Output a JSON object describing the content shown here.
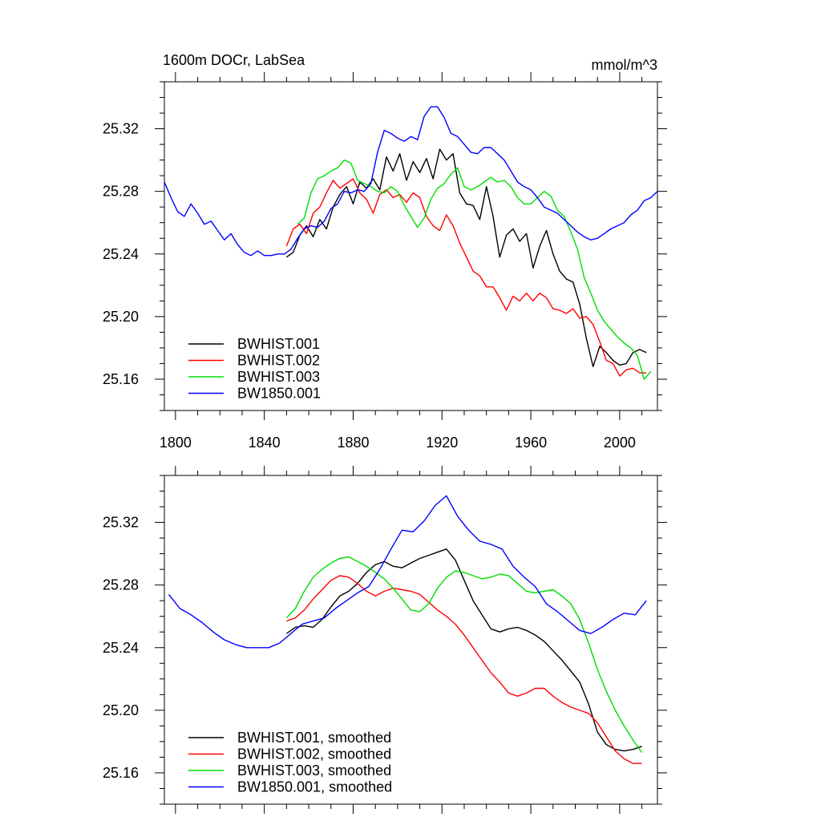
{
  "chart_data": [
    {
      "type": "line",
      "title_left": "1600m DOCr, LabSea",
      "title_right": "mmol/m^3",
      "xlim": [
        1795,
        2017
      ],
      "ylim": [
        25.14,
        25.35
      ],
      "xticks": [
        1800,
        1840,
        1880,
        1920,
        1960,
        2000
      ],
      "xtick_labels": [
        "1800",
        "1840",
        "1880",
        "1920",
        "1960",
        "2000"
      ],
      "yticks": [
        25.16,
        25.2,
        25.24,
        25.28,
        25.32
      ],
      "ytick_labels": [
        "25.16",
        "25.20",
        "25.24",
        "25.28",
        "25.32"
      ],
      "legend_position": "bottom-left",
      "series": [
        {
          "name": "BWHIST.001",
          "color": "#000000",
          "x": [
            1850,
            1853,
            1856,
            1859,
            1862,
            1865,
            1868,
            1871,
            1874,
            1877,
            1880,
            1883,
            1886,
            1889,
            1892,
            1895,
            1898,
            1901,
            1904,
            1907,
            1910,
            1913,
            1916,
            1919,
            1922,
            1925,
            1928,
            1931,
            1934,
            1937,
            1940,
            1943,
            1946,
            1949,
            1952,
            1955,
            1958,
            1961,
            1964,
            1967,
            1970,
            1973,
            1976,
            1979,
            1982,
            1985,
            1988,
            1991,
            1994,
            1997,
            2000,
            2003,
            2006,
            2009,
            2012
          ],
          "y": [
            25.238,
            25.241,
            25.252,
            25.258,
            25.251,
            25.262,
            25.256,
            25.27,
            25.278,
            25.283,
            25.272,
            25.286,
            25.282,
            25.288,
            25.281,
            25.302,
            25.293,
            25.304,
            25.287,
            25.299,
            25.292,
            25.301,
            25.288,
            25.307,
            25.3,
            25.304,
            25.279,
            25.272,
            25.271,
            25.262,
            25.283,
            25.264,
            25.238,
            25.252,
            25.256,
            25.248,
            25.253,
            25.231,
            25.245,
            25.255,
            25.24,
            25.229,
            25.224,
            25.222,
            25.208,
            25.186,
            25.168,
            25.181,
            25.177,
            25.172,
            25.169,
            25.17,
            25.177,
            25.179,
            25.177
          ]
        },
        {
          "name": "BWHIST.002",
          "color": "#ff0000",
          "x": [
            1850,
            1853,
            1856,
            1859,
            1862,
            1865,
            1868,
            1871,
            1874,
            1877,
            1880,
            1883,
            1886,
            1889,
            1892,
            1895,
            1898,
            1901,
            1904,
            1907,
            1910,
            1913,
            1916,
            1919,
            1922,
            1925,
            1928,
            1931,
            1934,
            1937,
            1940,
            1943,
            1946,
            1949,
            1952,
            1955,
            1958,
            1961,
            1964,
            1967,
            1970,
            1973,
            1976,
            1979,
            1982,
            1985,
            1988,
            1991,
            1994,
            1997,
            2000,
            2003,
            2006,
            2009,
            2012
          ],
          "y": [
            25.245,
            25.256,
            25.259,
            25.253,
            25.266,
            25.27,
            25.279,
            25.287,
            25.282,
            25.285,
            25.288,
            25.279,
            25.275,
            25.266,
            25.278,
            25.281,
            25.276,
            25.278,
            25.273,
            25.279,
            25.276,
            25.264,
            25.258,
            25.255,
            25.265,
            25.258,
            25.247,
            25.238,
            25.229,
            25.226,
            25.219,
            25.219,
            25.212,
            25.204,
            25.213,
            25.21,
            25.215,
            25.21,
            25.215,
            25.212,
            25.205,
            25.204,
            25.202,
            25.205,
            25.199,
            25.2,
            25.195,
            25.184,
            25.172,
            25.17,
            25.162,
            25.166,
            25.167,
            25.164,
            25.164
          ]
        },
        {
          "name": "BWHIST.003",
          "color": "#00dd00",
          "x": [
            1855,
            1858,
            1861,
            1864,
            1867,
            1870,
            1873,
            1876,
            1879,
            1882,
            1885,
            1888,
            1891,
            1894,
            1897,
            1900,
            1903,
            1906,
            1909,
            1912,
            1915,
            1918,
            1921,
            1924,
            1927,
            1930,
            1933,
            1936,
            1939,
            1942,
            1945,
            1948,
            1951,
            1954,
            1957,
            1960,
            1963,
            1966,
            1969,
            1972,
            1975,
            1978,
            1981,
            1984,
            1987,
            1990,
            1993,
            1996,
            1999,
            2002,
            2005,
            2008,
            2011,
            2014
          ],
          "y": [
            25.259,
            25.263,
            25.279,
            25.288,
            25.29,
            25.293,
            25.295,
            25.3,
            25.298,
            25.287,
            25.285,
            25.283,
            25.28,
            25.279,
            25.283,
            25.28,
            25.271,
            25.264,
            25.257,
            25.263,
            25.275,
            25.282,
            25.285,
            25.291,
            25.295,
            25.283,
            25.281,
            25.283,
            25.286,
            25.289,
            25.286,
            25.287,
            25.283,
            25.276,
            25.272,
            25.272,
            25.276,
            25.28,
            25.277,
            25.268,
            25.264,
            25.254,
            25.243,
            25.225,
            25.215,
            25.204,
            25.197,
            25.192,
            25.187,
            25.183,
            25.18,
            25.175,
            25.16,
            25.165
          ]
        },
        {
          "name": "BW1850.001",
          "color": "#0000ff",
          "x": [
            1795,
            1798,
            1801,
            1804,
            1807,
            1810,
            1813,
            1816,
            1819,
            1822,
            1825,
            1828,
            1831,
            1834,
            1837,
            1840,
            1843,
            1846,
            1849,
            1852,
            1855,
            1858,
            1861,
            1864,
            1867,
            1870,
            1873,
            1876,
            1879,
            1882,
            1885,
            1888,
            1891,
            1894,
            1897,
            1900,
            1903,
            1906,
            1909,
            1912,
            1915,
            1918,
            1921,
            1924,
            1927,
            1930,
            1933,
            1936,
            1939,
            1942,
            1945,
            1948,
            1951,
            1954,
            1957,
            1960,
            1963,
            1966,
            1969,
            1972,
            1975,
            1978,
            1981,
            1984,
            1987,
            1990,
            1993,
            1996,
            1999,
            2002,
            2005,
            2008,
            2011,
            2014,
            2017
          ],
          "y": [
            25.286,
            25.276,
            25.267,
            25.264,
            25.272,
            25.266,
            25.259,
            25.261,
            25.255,
            25.249,
            25.253,
            25.246,
            25.241,
            25.239,
            25.242,
            25.239,
            25.239,
            25.24,
            25.24,
            25.243,
            25.25,
            25.256,
            25.258,
            25.257,
            25.261,
            25.269,
            25.272,
            25.28,
            25.279,
            25.281,
            25.28,
            25.285,
            25.305,
            25.319,
            25.317,
            25.314,
            25.312,
            25.315,
            25.313,
            25.328,
            25.334,
            25.334,
            25.327,
            25.317,
            25.315,
            25.31,
            25.305,
            25.304,
            25.308,
            25.308,
            25.304,
            25.3,
            25.293,
            25.286,
            25.283,
            25.281,
            25.276,
            25.27,
            25.268,
            25.266,
            25.262,
            25.258,
            25.254,
            25.251,
            25.249,
            25.25,
            25.253,
            25.256,
            25.258,
            25.26,
            25.265,
            25.268,
            25.274,
            25.276,
            25.28
          ]
        }
      ]
    },
    {
      "type": "line",
      "xlim": [
        1795,
        2017
      ],
      "ylim": [
        25.14,
        25.35
      ],
      "xticks": [
        1800,
        1840,
        1880,
        1920,
        1960,
        2000
      ],
      "yticks": [
        25.16,
        25.2,
        25.24,
        25.28,
        25.32
      ],
      "ytick_labels": [
        "25.16",
        "25.20",
        "25.24",
        "25.28",
        "25.32"
      ],
      "legend_position": "bottom-left",
      "series": [
        {
          "name": "BWHIST.001, smoothed",
          "color": "#000000",
          "x": [
            1850,
            1854,
            1858,
            1862,
            1866,
            1870,
            1874,
            1878,
            1882,
            1886,
            1890,
            1894,
            1898,
            1902,
            1906,
            1910,
            1914,
            1918,
            1922,
            1926,
            1930,
            1934,
            1938,
            1942,
            1946,
            1950,
            1954,
            1958,
            1962,
            1966,
            1970,
            1974,
            1978,
            1982,
            1986,
            1990,
            1994,
            1998,
            2002,
            2006,
            2010
          ],
          "y": [
            25.249,
            25.253,
            25.254,
            25.253,
            25.258,
            25.266,
            25.273,
            25.276,
            25.281,
            25.288,
            25.293,
            25.295,
            25.292,
            25.291,
            25.294,
            25.297,
            25.299,
            25.301,
            25.303,
            25.296,
            25.283,
            25.27,
            25.261,
            25.252,
            25.25,
            25.252,
            25.253,
            25.251,
            25.248,
            25.244,
            25.238,
            25.232,
            25.225,
            25.218,
            25.204,
            25.186,
            25.178,
            25.175,
            25.174,
            25.175,
            25.177
          ]
        },
        {
          "name": "BWHIST.002, smoothed",
          "color": "#ff0000",
          "x": [
            1850,
            1854,
            1858,
            1862,
            1866,
            1870,
            1874,
            1878,
            1882,
            1886,
            1890,
            1894,
            1898,
            1902,
            1906,
            1910,
            1914,
            1918,
            1922,
            1926,
            1930,
            1934,
            1938,
            1942,
            1946,
            1950,
            1954,
            1958,
            1962,
            1966,
            1970,
            1974,
            1978,
            1982,
            1986,
            1990,
            1994,
            1998,
            2002,
            2006,
            2010
          ],
          "y": [
            25.257,
            25.259,
            25.264,
            25.271,
            25.277,
            25.283,
            25.286,
            25.285,
            25.281,
            25.276,
            25.273,
            25.276,
            25.278,
            25.277,
            25.276,
            25.274,
            25.269,
            25.264,
            25.26,
            25.255,
            25.248,
            25.24,
            25.232,
            25.224,
            25.218,
            25.211,
            25.209,
            25.211,
            25.214,
            25.214,
            25.209,
            25.205,
            25.202,
            25.2,
            25.198,
            25.192,
            25.183,
            25.174,
            25.169,
            25.166,
            25.166
          ]
        },
        {
          "name": "BWHIST.003, smoothed",
          "color": "#00dd00",
          "x": [
            1850,
            1854,
            1858,
            1862,
            1866,
            1870,
            1874,
            1878,
            1882,
            1886,
            1890,
            1894,
            1898,
            1902,
            1906,
            1910,
            1914,
            1918,
            1922,
            1926,
            1930,
            1934,
            1938,
            1942,
            1946,
            1950,
            1954,
            1958,
            1962,
            1966,
            1970,
            1974,
            1978,
            1982,
            1986,
            1990,
            1994,
            1998,
            2002,
            2006,
            2010
          ],
          "y": [
            25.259,
            25.265,
            25.276,
            25.285,
            25.29,
            25.294,
            25.297,
            25.298,
            25.295,
            25.292,
            25.288,
            25.284,
            25.278,
            25.271,
            25.264,
            25.263,
            25.268,
            25.278,
            25.285,
            25.289,
            25.288,
            25.286,
            25.284,
            25.285,
            25.287,
            25.286,
            25.281,
            25.276,
            25.275,
            25.276,
            25.277,
            25.273,
            25.268,
            25.258,
            25.243,
            25.226,
            25.212,
            25.2,
            25.19,
            25.181,
            25.173
          ]
        },
        {
          "name": "BW1850.001, smoothed",
          "color": "#0000ff",
          "x": [
            1797,
            1802,
            1807,
            1812,
            1817,
            1822,
            1827,
            1832,
            1837,
            1842,
            1847,
            1852,
            1857,
            1862,
            1867,
            1872,
            1877,
            1882,
            1887,
            1892,
            1897,
            1902,
            1907,
            1912,
            1917,
            1922,
            1927,
            1932,
            1937,
            1942,
            1947,
            1952,
            1957,
            1962,
            1967,
            1972,
            1977,
            1982,
            1987,
            1992,
            1997,
            2002,
            2007,
            2012
          ],
          "y": [
            25.274,
            25.265,
            25.261,
            25.256,
            25.25,
            25.245,
            25.242,
            25.24,
            25.24,
            25.24,
            25.243,
            25.249,
            25.255,
            25.257,
            25.259,
            25.265,
            25.27,
            25.275,
            25.279,
            25.29,
            25.303,
            25.315,
            25.314,
            25.321,
            25.331,
            25.337,
            25.324,
            25.315,
            25.308,
            25.306,
            25.303,
            25.292,
            25.285,
            25.279,
            25.268,
            25.263,
            25.257,
            25.251,
            25.249,
            25.253,
            25.258,
            25.262,
            25.261,
            25.27
          ]
        }
      ]
    }
  ]
}
